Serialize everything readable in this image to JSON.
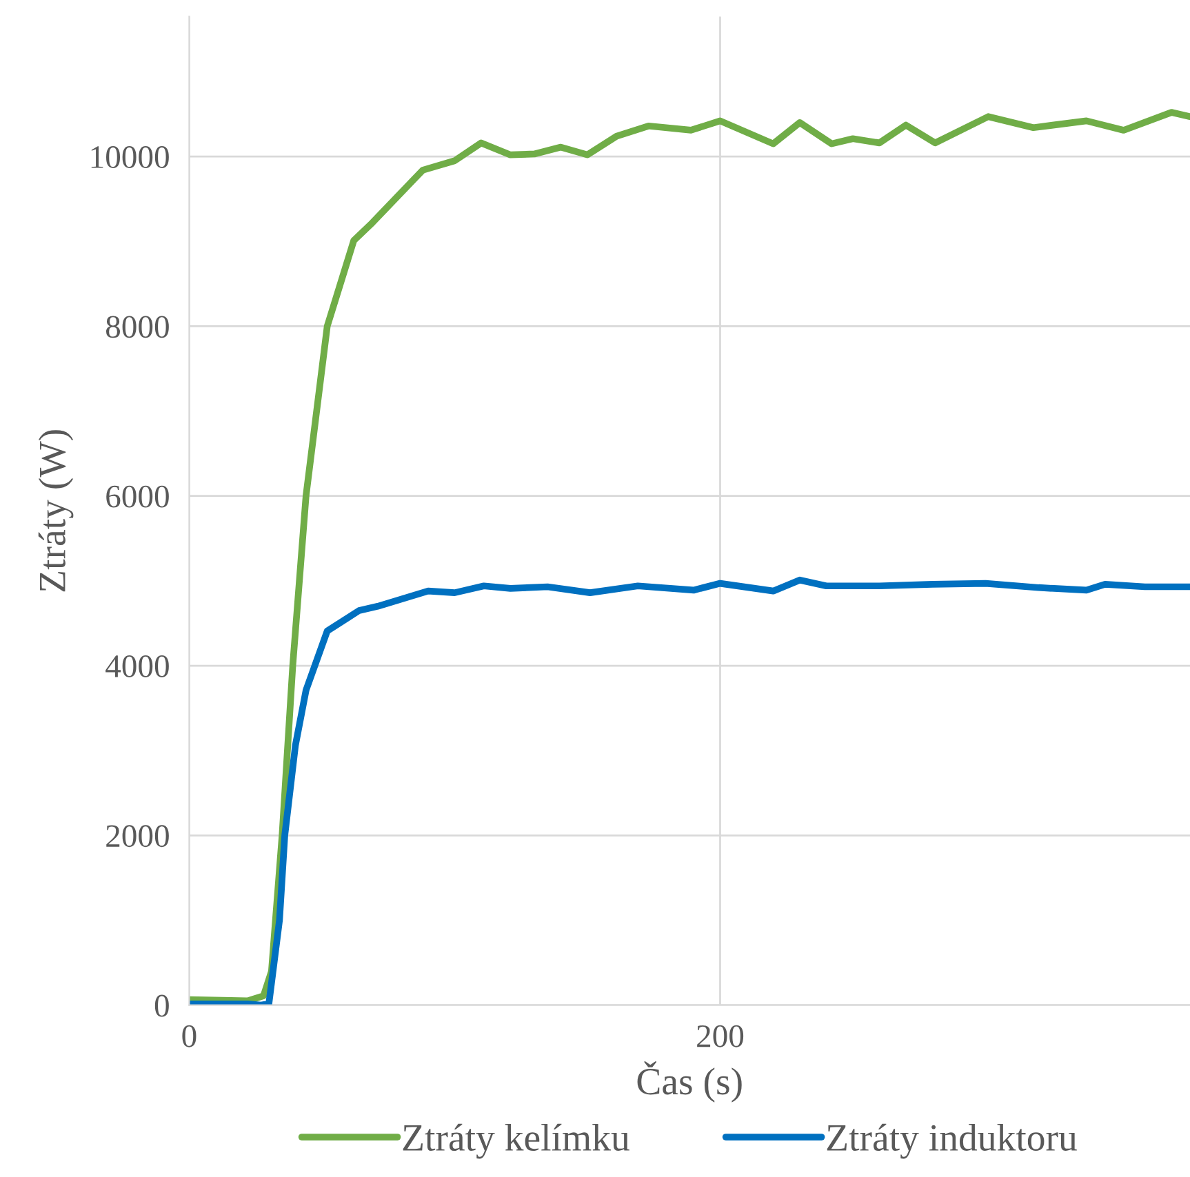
{
  "chart_data": {
    "type": "line",
    "xlabel": "Čas (s)",
    "ylabel": "Ztráty (W)",
    "xlim": [
      0,
      377
    ],
    "ylim": [
      0,
      11650
    ],
    "xticks": [
      0,
      200
    ],
    "yticks": [
      0,
      2000,
      4000,
      6000,
      8000,
      10000
    ],
    "grid": true,
    "legend": "bottom",
    "marker": "none",
    "line_style": "solid",
    "series": [
      {
        "name": "Ztráty kelímku",
        "color": "#70ad47",
        "x": [
          0,
          22,
          28,
          31,
          35,
          39,
          44,
          52,
          62,
          69,
          88,
          100,
          110,
          121,
          130,
          140,
          150,
          161,
          173,
          189,
          200,
          220,
          230,
          242,
          250,
          260,
          270,
          281,
          301,
          318,
          338,
          352,
          370,
          377
        ],
        "values": [
          65,
          50,
          110,
          400,
          2000,
          4000,
          6000,
          8000,
          9010,
          9220,
          9840,
          9950,
          10160,
          10020,
          10030,
          10110,
          10020,
          10240,
          10360,
          10310,
          10420,
          10150,
          10400,
          10150,
          10210,
          10160,
          10370,
          10160,
          10470,
          10340,
          10420,
          10310,
          10520,
          10470
        ]
      },
      {
        "name": "Ztráty induktoru",
        "color": "#0070c0",
        "x": [
          0,
          22,
          27,
          30,
          34,
          36,
          40,
          44,
          52,
          64,
          71,
          90,
          100,
          111,
          121,
          135,
          151,
          169,
          190,
          200,
          220,
          230,
          240,
          260,
          280,
          300,
          320,
          338,
          345,
          360,
          377
        ],
        "values": [
          15,
          15,
          0,
          15,
          1000,
          2000,
          3060,
          3710,
          4410,
          4650,
          4700,
          4880,
          4860,
          4940,
          4910,
          4930,
          4860,
          4940,
          4890,
          4970,
          4880,
          5010,
          4940,
          4940,
          4960,
          4970,
          4920,
          4890,
          4960,
          4930,
          4930
        ]
      }
    ]
  }
}
